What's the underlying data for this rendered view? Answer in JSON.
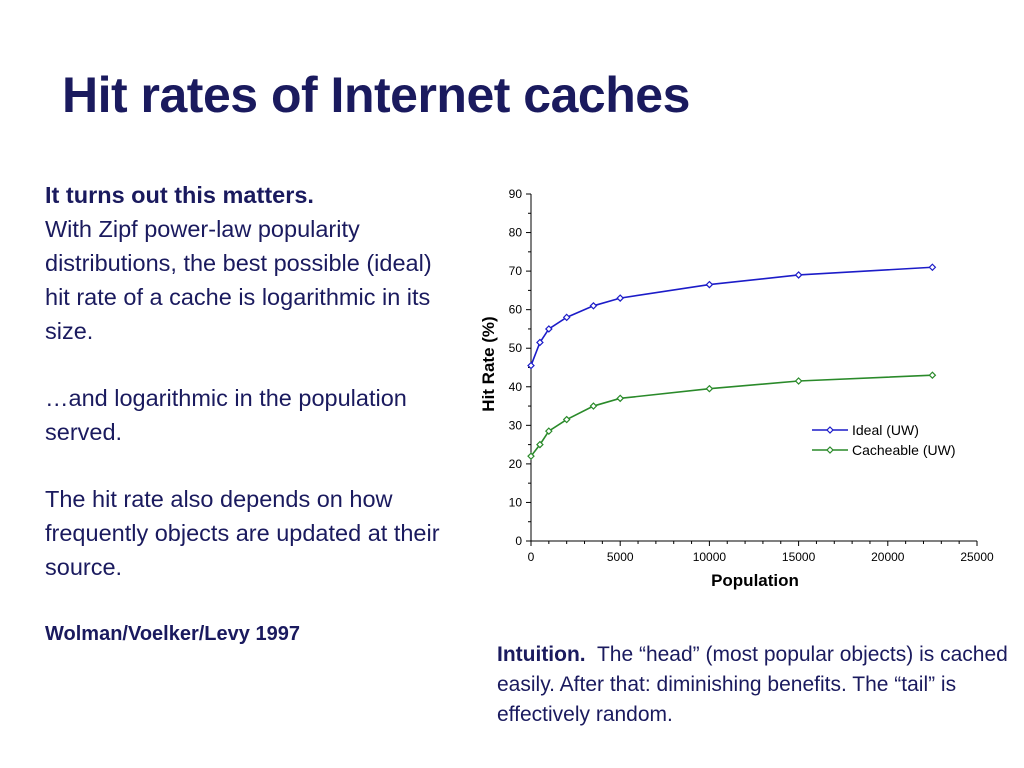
{
  "slide": {
    "title": "Hit rates of Internet caches",
    "left_heading": "It turns out this matters.",
    "left_p1": "With Zipf power-law popularity distributions, the best possible (ideal) hit rate of a cache is logarithmic in its size.",
    "left_p2": "…and logarithmic in the population served.",
    "left_p3": "The hit rate also depends on how frequently objects are updated at their source.",
    "citation": "Wolman/Voelker/Levy 1997",
    "intuition_lead": "Intuition.",
    "intuition_text": "The “head” (most popular objects) is cached easily.  After that: diminishing benefits.  The “tail” is effectively random."
  },
  "chart_data": {
    "type": "line",
    "xlabel": "Population",
    "ylabel": "Hit Rate (%)",
    "xlim": [
      0,
      25000
    ],
    "ylim": [
      0,
      90
    ],
    "xticks": [
      0,
      5000,
      10000,
      15000,
      20000,
      25000
    ],
    "yticks": [
      0,
      10,
      20,
      30,
      40,
      50,
      60,
      70,
      80,
      90
    ],
    "grid": false,
    "legend_position": "right",
    "series": [
      {
        "name": "Ideal (UW)",
        "color": "#1c1cc8",
        "x": [
          0,
          500,
          1000,
          2000,
          3500,
          5000,
          10000,
          15000,
          22500
        ],
        "y": [
          45.5,
          51.5,
          55,
          58,
          61,
          63,
          66.5,
          69,
          71
        ]
      },
      {
        "name": "Cacheable (UW)",
        "color": "#2a8a2a",
        "x": [
          0,
          500,
          1000,
          2000,
          3500,
          5000,
          10000,
          15000,
          22500
        ],
        "y": [
          22,
          25,
          28.5,
          31.5,
          35,
          37,
          39.5,
          41.5,
          43
        ]
      }
    ]
  }
}
